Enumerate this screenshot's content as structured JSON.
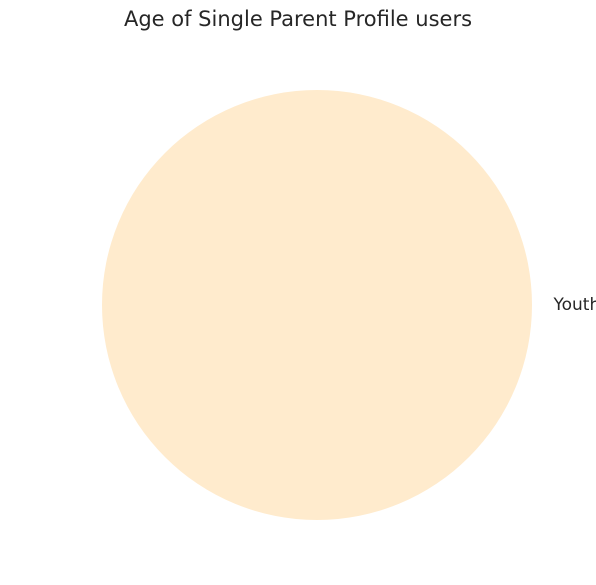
{
  "chart_data": {
    "type": "pie",
    "title": "Age of Single Parent Profile users",
    "categories": [
      "Youthful"
    ],
    "values": [
      100
    ],
    "colors": [
      "#ffebcd"
    ],
    "legend": false,
    "grid": false
  }
}
